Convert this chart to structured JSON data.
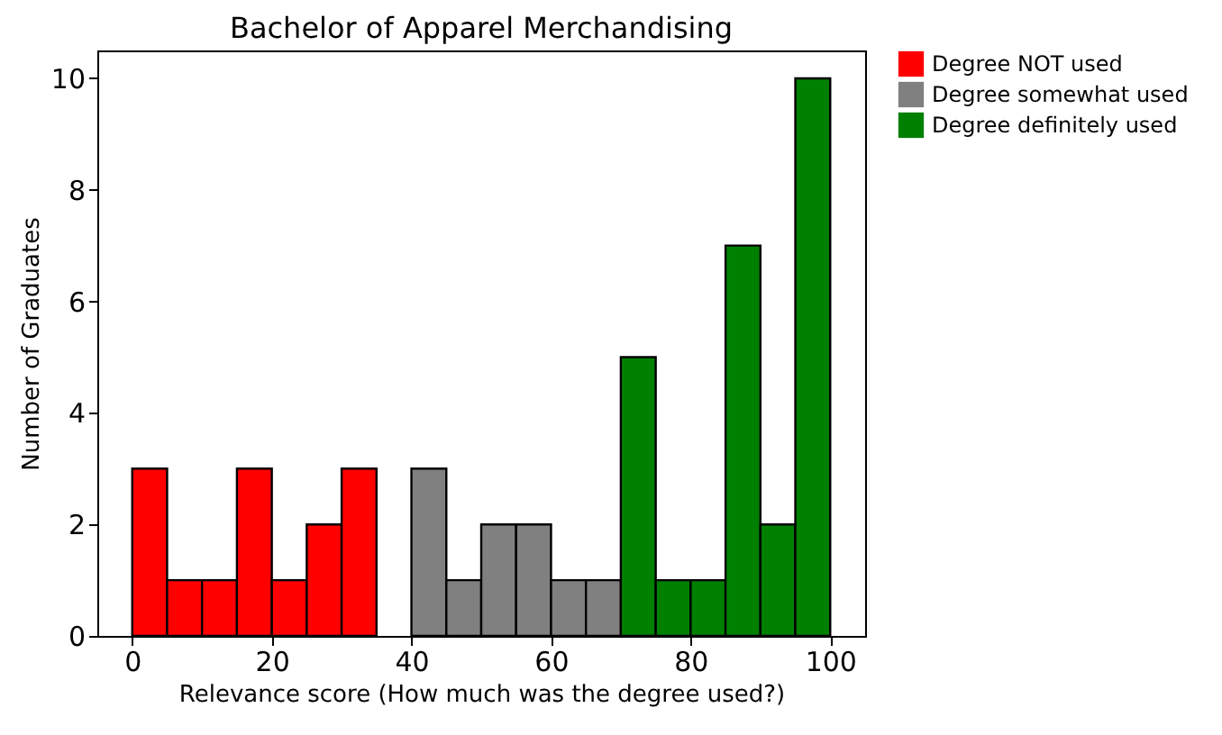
{
  "chart_data": {
    "type": "histogram",
    "title": "Bachelor of Apparel Merchandising",
    "xlabel": "Relevance score (How much was the degree used?)",
    "ylabel": "Number of Graduates",
    "bins": [
      0,
      5,
      10,
      15,
      20,
      25,
      30,
      35,
      40,
      45,
      50,
      55,
      60,
      65,
      70,
      75,
      80,
      85,
      90,
      95,
      100
    ],
    "series": [
      {
        "name": "Degree NOT used",
        "color": "#ff0000",
        "values": [
          3,
          1,
          1,
          3,
          1,
          2,
          3,
          null,
          null,
          null,
          null,
          null,
          null,
          null,
          null,
          null,
          null,
          null,
          null,
          null
        ]
      },
      {
        "name": "Degree somewhat used",
        "color": "#808080",
        "values": [
          null,
          null,
          null,
          null,
          null,
          null,
          null,
          null,
          3,
          1,
          2,
          2,
          1,
          1,
          null,
          null,
          null,
          null,
          null,
          null
        ]
      },
      {
        "name": "Degree definitely used",
        "color": "#008000",
        "values": [
          null,
          null,
          null,
          null,
          null,
          null,
          null,
          null,
          null,
          null,
          null,
          null,
          null,
          null,
          5,
          1,
          1,
          7,
          2,
          10
        ]
      }
    ],
    "xlim": [
      -5,
      105
    ],
    "xticks": [
      0,
      20,
      40,
      60,
      80,
      100
    ],
    "ylim": [
      0,
      10.5
    ],
    "yticks": [
      0,
      2,
      4,
      6,
      8,
      10
    ],
    "grid": false,
    "legend": "top right"
  }
}
